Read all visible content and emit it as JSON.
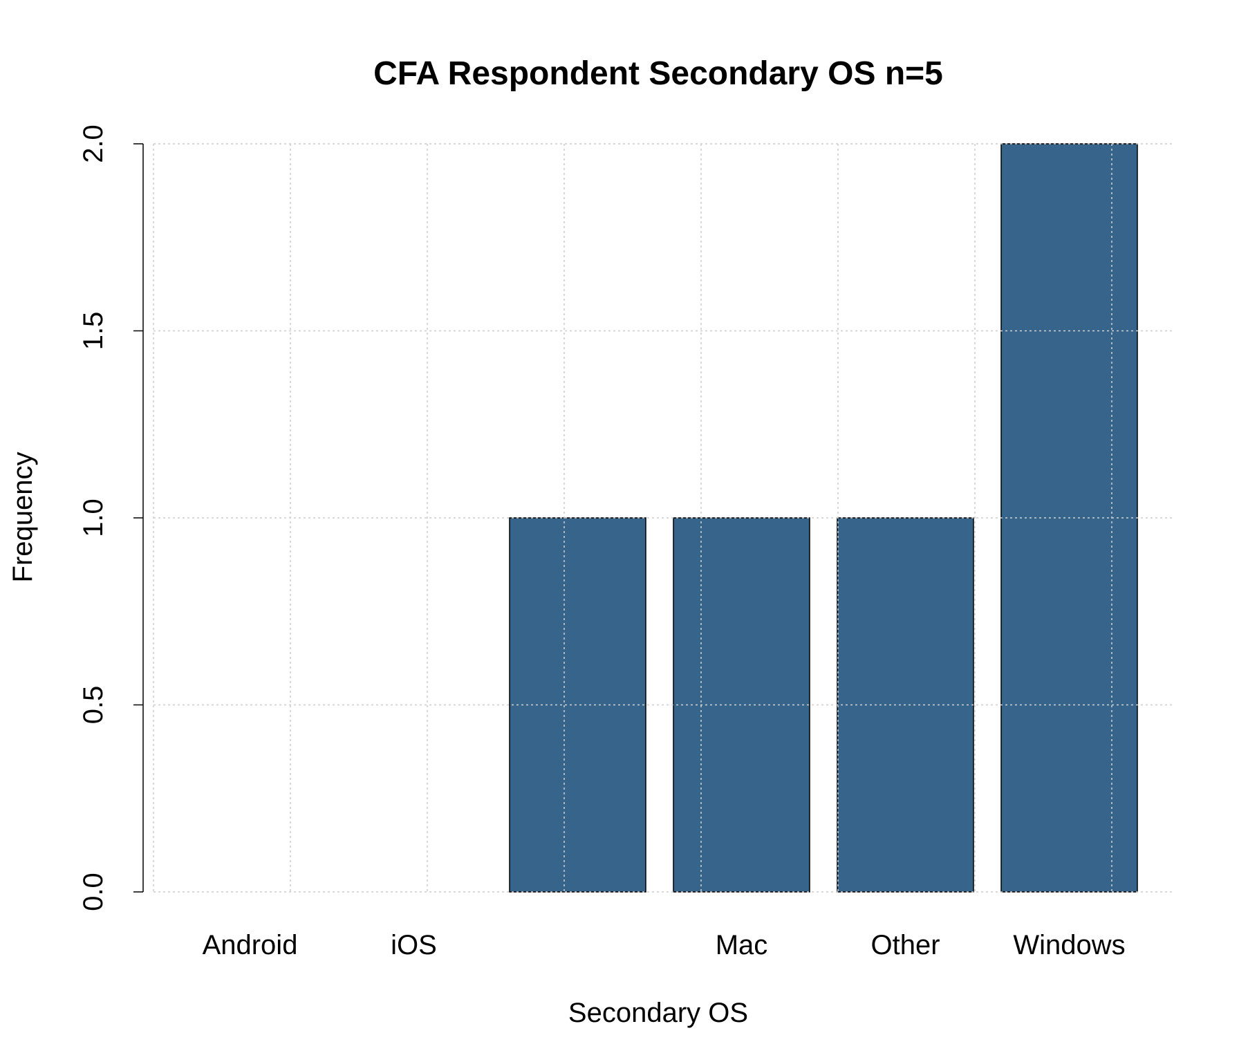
{
  "chart_data": {
    "type": "bar",
    "title": "CFA Respondent Secondary OS n=5",
    "xlabel": "Secondary OS",
    "ylabel": "Frequency",
    "categories": [
      "Android",
      "iOS",
      "",
      "Mac",
      "Other",
      "Windows"
    ],
    "values": [
      0,
      0,
      1,
      1,
      1,
      2
    ],
    "ylim": [
      0,
      2
    ],
    "yticks": [
      "0.0",
      "0.5",
      "1.0",
      "1.5",
      "2.0"
    ],
    "grid": true,
    "bar_color": "#36648b",
    "grid_color": "#d3d3d3"
  }
}
